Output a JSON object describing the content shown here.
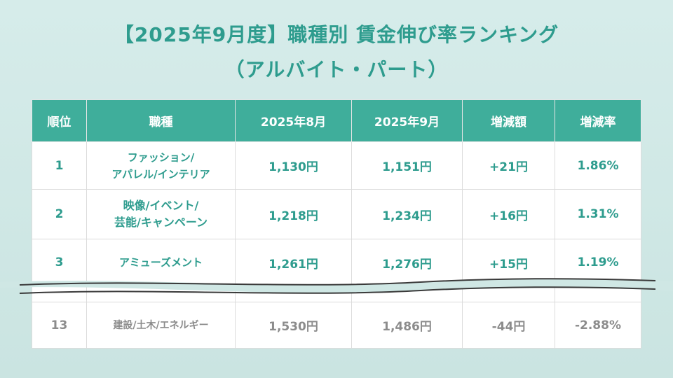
{
  "title": {
    "line1": "【2025年9月度】職種別 賃金伸び率ランキング",
    "line2": "（アルバイト・パート）"
  },
  "table": {
    "headers": [
      "順位",
      "職種",
      "2025年8月",
      "2025年9月",
      "増減額",
      "増減率"
    ],
    "rows": [
      {
        "rank": "1",
        "job_line1": "ファッション/",
        "job_line2": "アパレル/インテリア",
        "aug": "1,130円",
        "sep": "1,151円",
        "diff": "+21円",
        "rate": "1.86%"
      },
      {
        "rank": "2",
        "job_line1": "映像/イベント/",
        "job_line2": "芸能/キャンペーン",
        "aug": "1,218円",
        "sep": "1,234円",
        "diff": "+16円",
        "rate": "1.31%"
      },
      {
        "rank": "3",
        "job_line1": "アミューズメント",
        "job_line2": "",
        "aug": "1,261円",
        "sep": "1,276円",
        "diff": "+15円",
        "rate": "1.19%"
      },
      {
        "rank": "13",
        "job_line1": "建設/土木/エネルギー",
        "job_line2": "",
        "aug": "1,530円",
        "sep": "1,486円",
        "diff": "-44円",
        "rate": "-2.88%"
      }
    ]
  },
  "colors": {
    "accent": "#2e9c8e",
    "header_bg": "#3fae9b",
    "negative_row_text": "#8c8c8c",
    "background": "#cfe7e4"
  }
}
